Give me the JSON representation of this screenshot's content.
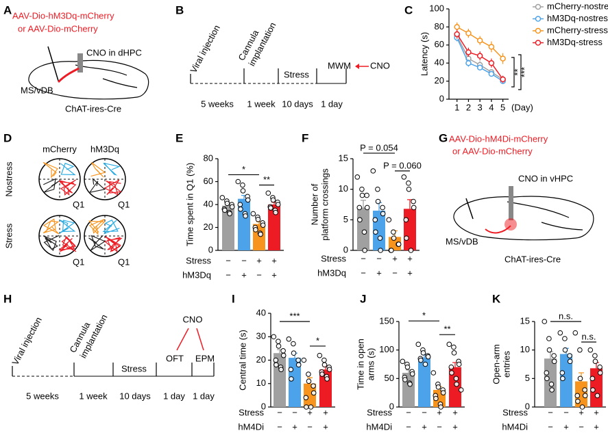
{
  "panels": {
    "letters": [
      "A",
      "B",
      "C",
      "D",
      "E",
      "F",
      "G",
      "H",
      "I",
      "J",
      "K"
    ],
    "a": {
      "label": [
        "AAV-Dio-hM3Dq-mCherry",
        "or AAV-Dio-mCherry"
      ],
      "cno": "CNO in dHPC",
      "region": "MS/vDB",
      "mouse": "ChAT-ires-Cre"
    },
    "b": {
      "events": [
        "Viral injection",
        [
          "Cannula",
          "implantation"
        ],
        "Stress",
        "MWM",
        "CNO"
      ],
      "durations": [
        "5 weeks",
        "1 week",
        "10 days",
        "1 day"
      ]
    },
    "d": {
      "columns": [
        "mCherry",
        "hM3Dq"
      ],
      "rows": [
        "Nostress",
        "Stress"
      ],
      "quadrant": "Q1"
    },
    "g": {
      "label": [
        "AAV-Dio-hM4Di-mCherry",
        "or AAV-Dio-mCherry"
      ],
      "cno": "CNO in vHPC",
      "region": "MS/vDB",
      "mouse": "ChAT-ires-Cre"
    },
    "h": {
      "events": [
        "Viral injection",
        [
          "Cannula",
          "implantation"
        ],
        "Stress",
        "CNO",
        "OFT",
        "EPM"
      ],
      "durations": [
        "5 weeks",
        "1 week",
        "10 days",
        "1 day",
        "1 day"
      ]
    }
  },
  "chart_data": [
    {
      "type": "line",
      "ylabel": "Latency (s)",
      "xlabel": "(Day)",
      "x": [
        1,
        2,
        3,
        4,
        5
      ],
      "xlim": [
        0.3,
        5.5
      ],
      "xticks": [
        1,
        2,
        3,
        4,
        5
      ],
      "ylim": [
        0,
        100
      ],
      "yticks": [
        0,
        20,
        40,
        60,
        80,
        100
      ],
      "legend": "top right",
      "annotations": [
        "**",
        "***"
      ],
      "series": [
        {
          "name": "mCherry-nostress",
          "color": "#a0a0a0",
          "values": [
            70,
            45,
            38,
            30,
            22
          ],
          "errors": [
            4,
            4,
            4,
            3,
            3
          ]
        },
        {
          "name": "hM3Dq-nostress",
          "color": "#4da3ea",
          "values": [
            68,
            40,
            35,
            28,
            20
          ],
          "errors": [
            4,
            4,
            3,
            3,
            3
          ]
        },
        {
          "name": "mCherry-stress",
          "color": "#f7941d",
          "values": [
            80,
            73,
            65,
            58,
            45
          ],
          "errors": [
            5,
            5,
            5,
            6,
            6
          ]
        },
        {
          "name": "hM3Dq-stress",
          "color": "#ed1c24",
          "values": [
            72,
            52,
            48,
            40,
            22
          ],
          "errors": [
            5,
            5,
            5,
            5,
            4
          ]
        }
      ]
    },
    {
      "type": "bar",
      "ylabel": [
        "Time spent in Q1 (%)"
      ],
      "ylim": [
        0,
        80
      ],
      "yticks": [
        0,
        20,
        40,
        60,
        80
      ],
      "colors": [
        "#a0a0a0",
        "#4da3ea",
        "#f7941d",
        "#ed1c24"
      ],
      "values": [
        39,
        45,
        23,
        40
      ],
      "errors": [
        2,
        3,
        2,
        2
      ],
      "points": [
        [
          46,
          43,
          41,
          40,
          38,
          36,
          35,
          33,
          32
        ],
        [
          60,
          57,
          52,
          47,
          44,
          40,
          36,
          32,
          30
        ],
        [
          32,
          29,
          27,
          24,
          22,
          20,
          18,
          15,
          14
        ],
        [
          50,
          46,
          44,
          42,
          40,
          38,
          37,
          35,
          33
        ]
      ],
      "rows": [
        {
          "name": "Stress",
          "values": [
            "−",
            "−",
            "+",
            "+"
          ]
        },
        {
          "name": "hM3Dq",
          "values": [
            "−",
            "+",
            "−",
            "+"
          ]
        }
      ],
      "annotations": [
        "*",
        "**"
      ]
    },
    {
      "type": "bar",
      "ylabel": [
        "Number of",
        "platform crossings"
      ],
      "ylim": [
        0,
        15
      ],
      "yticks": [
        0,
        5,
        10,
        15
      ],
      "colors": [
        "#a0a0a0",
        "#4da3ea",
        "#f7941d",
        "#ed1c24"
      ],
      "values": [
        7,
        6.5,
        2.2,
        6.8
      ],
      "errors": [
        1.2,
        1.3,
        1.0,
        1.5
      ],
      "points": [
        [
          12,
          10,
          9,
          9,
          7,
          7,
          5,
          3,
          0
        ],
        [
          13,
          10,
          8,
          7,
          6,
          5,
          3,
          2,
          0
        ],
        [
          5,
          3,
          2,
          1,
          1,
          0,
          0
        ],
        [
          12,
          11,
          10,
          8,
          7,
          5,
          2,
          0
        ]
      ],
      "rows": [
        {
          "name": "Stress",
          "values": [
            "−",
            "−",
            "+",
            "+"
          ]
        },
        {
          "name": "hM3Dq",
          "values": [
            "−",
            "+",
            "−",
            "+"
          ]
        }
      ],
      "annotations": [
        "P = 0.054",
        "P = 0.060"
      ]
    },
    {
      "type": "bar",
      "ylabel": [
        "Central time (s)"
      ],
      "ylim": [
        0,
        40
      ],
      "yticks": [
        0,
        10,
        20,
        30,
        40
      ],
      "colors": [
        "#a0a0a0",
        "#4da3ea",
        "#f7941d",
        "#ed1c24"
      ],
      "values": [
        23,
        21,
        10,
        16
      ],
      "errors": [
        1.5,
        2,
        2.5,
        1.5
      ],
      "points": [
        [
          30,
          28,
          26,
          24,
          22,
          20,
          18,
          17,
          16
        ],
        [
          29,
          27,
          23,
          20,
          18,
          16,
          12
        ],
        [
          20,
          14,
          11,
          9,
          6,
          4,
          0,
          0
        ],
        [
          22,
          20,
          18,
          17,
          16,
          15,
          14,
          13,
          12
        ]
      ],
      "rows": [
        {
          "name": "Stress",
          "values": [
            "−",
            "−",
            "+",
            "+"
          ]
        },
        {
          "name": "hM4Di",
          "values": [
            "−",
            "+",
            "−",
            "+"
          ]
        }
      ],
      "annotations": [
        "***",
        "*"
      ]
    },
    {
      "type": "bar",
      "ylabel": [
        "Time in open",
        "arms (s)"
      ],
      "ylim": [
        0,
        150
      ],
      "yticks": [
        0,
        50,
        100,
        150
      ],
      "colors": [
        "#a0a0a0",
        "#4da3ea",
        "#f7941d",
        "#ed1c24"
      ],
      "values": [
        60,
        87,
        30,
        70
      ],
      "errors": [
        5,
        5,
        6,
        8
      ],
      "points": [
        [
          80,
          75,
          70,
          62,
          58,
          52,
          48,
          42,
          40
        ],
        [
          110,
          100,
          95,
          90,
          88,
          85,
          82,
          75
        ],
        [
          60,
          40,
          35,
          30,
          25,
          20,
          15,
          5,
          0
        ],
        [
          110,
          105,
          95,
          80,
          75,
          70,
          60,
          50,
          40,
          30
        ]
      ],
      "rows": [
        {
          "name": "Stress",
          "values": [
            "−",
            "−",
            "+",
            "+"
          ]
        },
        {
          "name": "hM4Di",
          "values": [
            "−",
            "+",
            "−",
            "+"
          ]
        }
      ],
      "annotations": [
        "*",
        "**"
      ]
    },
    {
      "type": "bar",
      "ylabel": [
        "Open-arm",
        "entries"
      ],
      "ylim": [
        0,
        15
      ],
      "yticks": [
        0,
        5,
        10,
        15
      ],
      "colors": [
        "#a0a0a0",
        "#4da3ea",
        "#f7941d",
        "#ed1c24"
      ],
      "values": [
        8.5,
        9.3,
        4.5,
        6.8
      ],
      "errors": [
        1.2,
        1.0,
        1.5,
        1.0
      ],
      "points": [
        [
          15,
          12,
          10,
          9,
          8,
          6,
          5,
          4,
          3
        ],
        [
          13,
          12,
          10,
          9,
          8,
          6,
          5
        ],
        [
          13,
          10,
          5,
          3,
          2,
          2,
          1,
          0
        ],
        [
          10,
          9,
          8,
          7,
          6,
          5,
          3,
          2
        ]
      ],
      "rows": [
        {
          "name": "Stress",
          "values": [
            "−",
            "−",
            "+",
            "+"
          ]
        },
        {
          "name": "hM4Di",
          "values": [
            "−",
            "+",
            "−",
            "+"
          ]
        }
      ],
      "annotations": [
        "n.s.",
        "n.s."
      ]
    }
  ]
}
